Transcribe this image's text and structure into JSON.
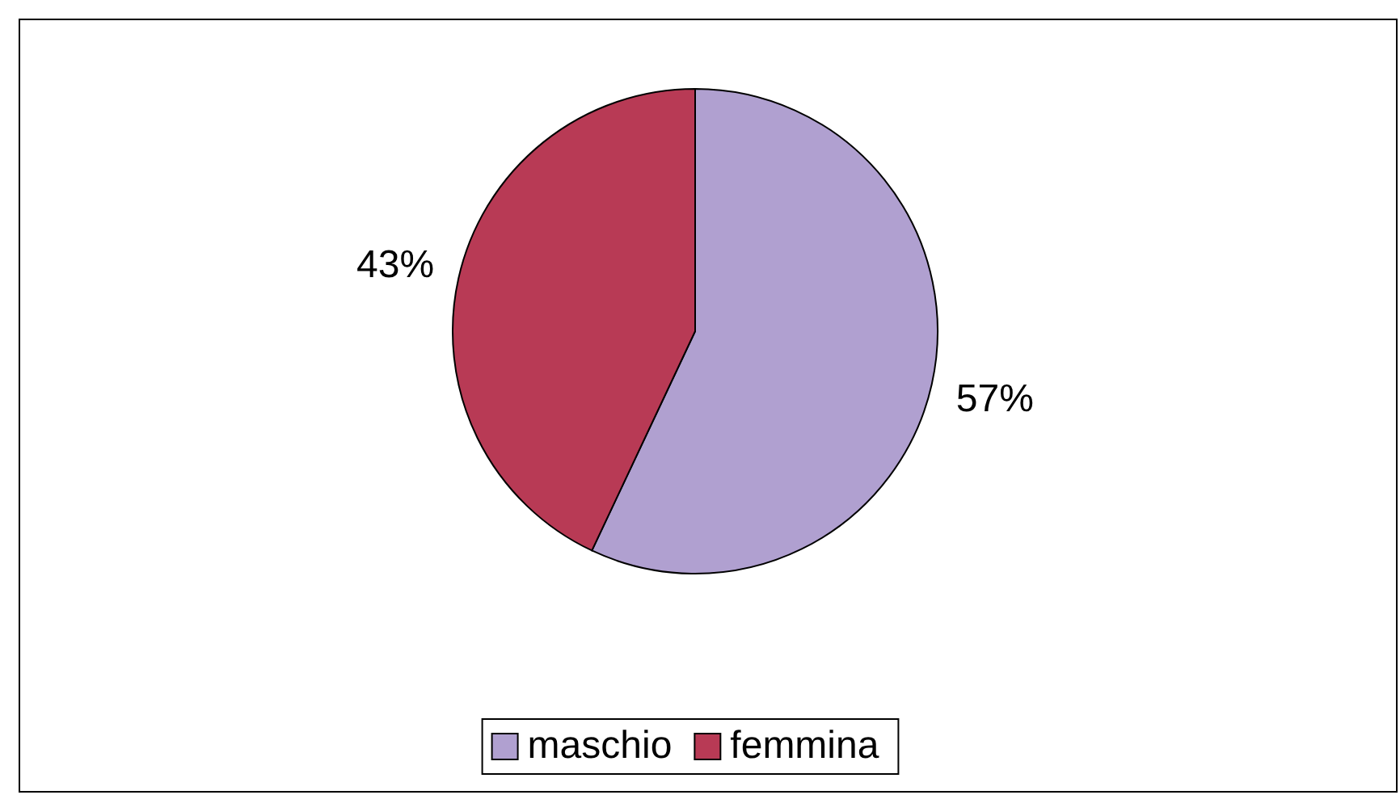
{
  "chart_data": {
    "type": "pie",
    "categories": [
      "maschio",
      "femmina"
    ],
    "values": [
      57,
      43
    ],
    "colors": [
      "#b0a0d0",
      "#b83a55"
    ],
    "value_labels": [
      "57%",
      "43%"
    ],
    "legend": "bottom"
  }
}
